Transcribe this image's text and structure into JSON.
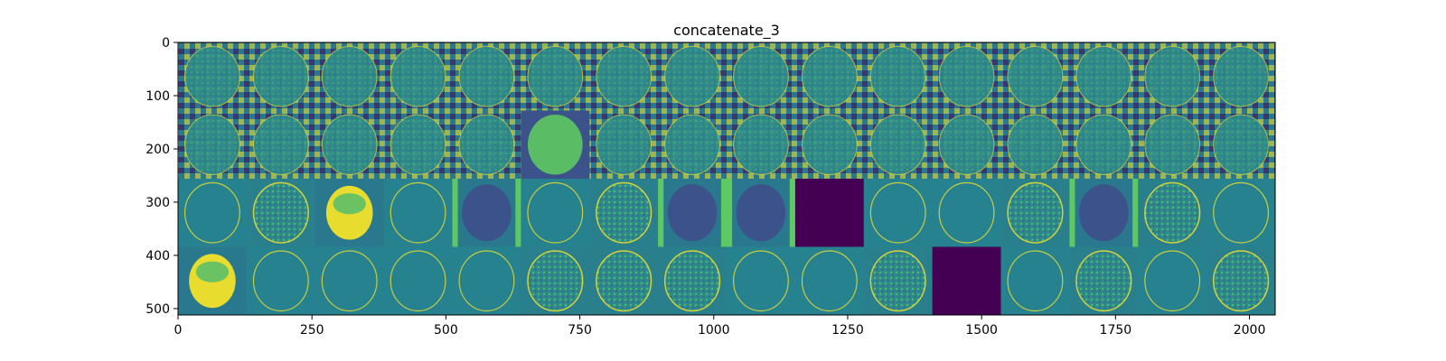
{
  "chart_data": {
    "type": "heatmap",
    "title": "concatenate_3",
    "xlabel": "",
    "ylabel": "",
    "xlim": [
      0,
      2048
    ],
    "ylim": [
      512,
      0
    ],
    "x_ticks": [
      0,
      250,
      500,
      750,
      1000,
      1250,
      1500,
      1750,
      2000
    ],
    "y_ticks": [
      0,
      100,
      200,
      300,
      400,
      500
    ],
    "x_tick_labels": [
      "0",
      "250",
      "500",
      "750",
      "1000",
      "1250",
      "1500",
      "1750",
      "2000"
    ],
    "y_tick_labels": [
      "0",
      "100",
      "200",
      "300",
      "400",
      "500"
    ],
    "grid": false,
    "colormap": "viridis",
    "tile_size": 128,
    "grid_rows": 4,
    "grid_cols": 16
  },
  "colors": {
    "viridis_dark": "#440154",
    "viridis_mid": "#21918c",
    "viridis_teal": "#2a788e",
    "viridis_blue": "#3b528b",
    "viridis_green": "#5ec962",
    "viridis_yellow": "#fde725"
  }
}
